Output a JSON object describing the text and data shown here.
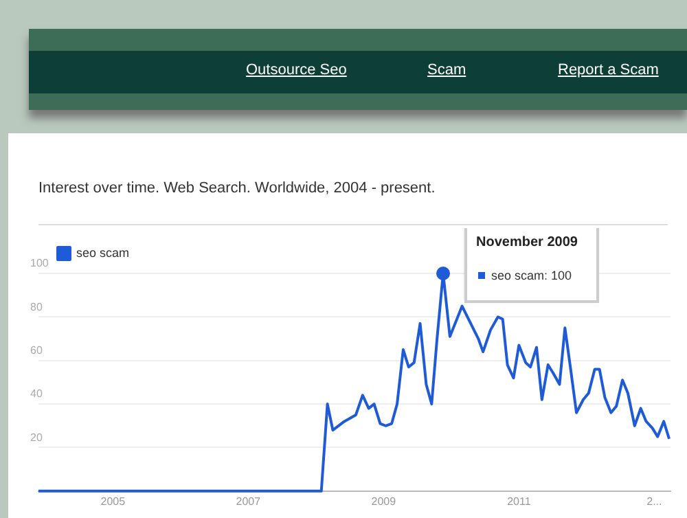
{
  "chart_data": {
    "type": "line",
    "title": "Interest over time. Web Search. Worldwide, 2004 - present.",
    "annotations": [
      "Outsource Seo",
      "Scam",
      "Report a Scam",
      {
        "text": "November 2009",
        "x": 2009.88,
        "y": 100
      },
      "seo scam: 100"
    ],
    "series": [
      {
        "name": "seo scam",
        "color": "#1f5bd6",
        "x": [
          2003.9,
          2008.08,
          2008.17,
          2008.25,
          2008.42,
          2008.59,
          2008.69,
          2008.78,
          2008.86,
          2008.95,
          2009.03,
          2009.12,
          2009.2,
          2009.29,
          2009.37,
          2009.45,
          2009.54,
          2009.63,
          2009.71,
          2009.79,
          2009.88,
          2009.98,
          2010.16,
          2010.4,
          2010.47,
          2010.58,
          2010.69,
          2010.76,
          2010.83,
          2010.92,
          2011.0,
          2011.1,
          2011.17,
          2011.26,
          2011.34,
          2011.43,
          2011.51,
          2011.6,
          2011.68,
          2011.76,
          2011.85,
          2011.95,
          2012.03,
          2012.12,
          2012.19,
          2012.27,
          2012.36,
          2012.44,
          2012.53,
          2012.61,
          2012.71,
          2012.8,
          2012.88,
          2012.97,
          2013.05,
          2013.14,
          2013.22
        ],
        "values": [
          0,
          0,
          40,
          28,
          32,
          35,
          44,
          38,
          40,
          31,
          30,
          31,
          40,
          65,
          57,
          59,
          77,
          49,
          40,
          70,
          100,
          71,
          85,
          70,
          64,
          74,
          80,
          79,
          58,
          52,
          67,
          59,
          57,
          66,
          42,
          58,
          54,
          49,
          75,
          57,
          36,
          42,
          45,
          56,
          56,
          43,
          36,
          39,
          51,
          45,
          30,
          38,
          32,
          29,
          25,
          32,
          24
        ]
      }
    ],
    "xlim": [
      2003.9,
      2013.24
    ],
    "xticks": [
      2005,
      2007,
      2009,
      2011,
      {
        "value": 2013,
        "label": "2..."
      }
    ],
    "ylim": [
      0,
      100
    ],
    "yticks": [
      {
        "value": 0,
        "label": null
      },
      20,
      40,
      60,
      80,
      100
    ],
    "grid": "y",
    "legend": "top left",
    "marker": "none",
    "line_style": "solid"
  }
}
